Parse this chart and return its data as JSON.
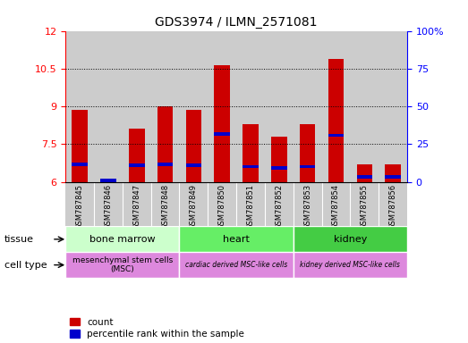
{
  "title": "GDS3974 / ILMN_2571081",
  "samples": [
    "GSM787845",
    "GSM787846",
    "GSM787847",
    "GSM787848",
    "GSM787849",
    "GSM787850",
    "GSM787851",
    "GSM787852",
    "GSM787853",
    "GSM787854",
    "GSM787855",
    "GSM787856"
  ],
  "red_values": [
    8.85,
    6.1,
    8.1,
    9.0,
    8.85,
    10.65,
    8.3,
    7.8,
    8.3,
    10.9,
    6.7,
    6.7
  ],
  "blue_values": [
    6.7,
    6.05,
    6.65,
    6.7,
    6.65,
    7.9,
    6.6,
    6.55,
    6.6,
    7.85,
    6.2,
    6.2
  ],
  "ymin": 6.0,
  "ymax": 12.0,
  "y2min": 0.0,
  "y2max": 100.0,
  "yticks": [
    6.0,
    7.5,
    9.0,
    10.5,
    12.0
  ],
  "ytick_labels": [
    "6",
    "7.5",
    "9",
    "10.5",
    "12"
  ],
  "y2ticks": [
    0,
    25,
    50,
    75,
    100
  ],
  "y2tick_labels": [
    "0",
    "25",
    "50",
    "75",
    "100%"
  ],
  "bar_width": 0.55,
  "bar_color": "#cc0000",
  "blue_color": "#0000cc",
  "bg_color": "#ffffff",
  "col_bg": "#cccccc",
  "tissue_groups": [
    {
      "label": "bone marrow",
      "start": 0,
      "end": 3,
      "color": "#ccffcc"
    },
    {
      "label": "heart",
      "start": 4,
      "end": 7,
      "color": "#66ee66"
    },
    {
      "label": "kidney",
      "start": 8,
      "end": 11,
      "color": "#44cc44"
    }
  ],
  "cell_type_groups": [
    {
      "label": "mesenchymal stem cells\n(MSC)",
      "start": 0,
      "end": 3,
      "color": "#dd88dd"
    },
    {
      "label": "cardiac derived MSC-like cells",
      "start": 4,
      "end": 7,
      "color": "#dd88dd"
    },
    {
      "label": "kidney derived MSC-like cells",
      "start": 8,
      "end": 11,
      "color": "#dd88dd"
    }
  ],
  "tissue_label": "tissue",
  "celltype_label": "cell type",
  "legend_count": "count",
  "legend_pct": "percentile rank within the sample"
}
